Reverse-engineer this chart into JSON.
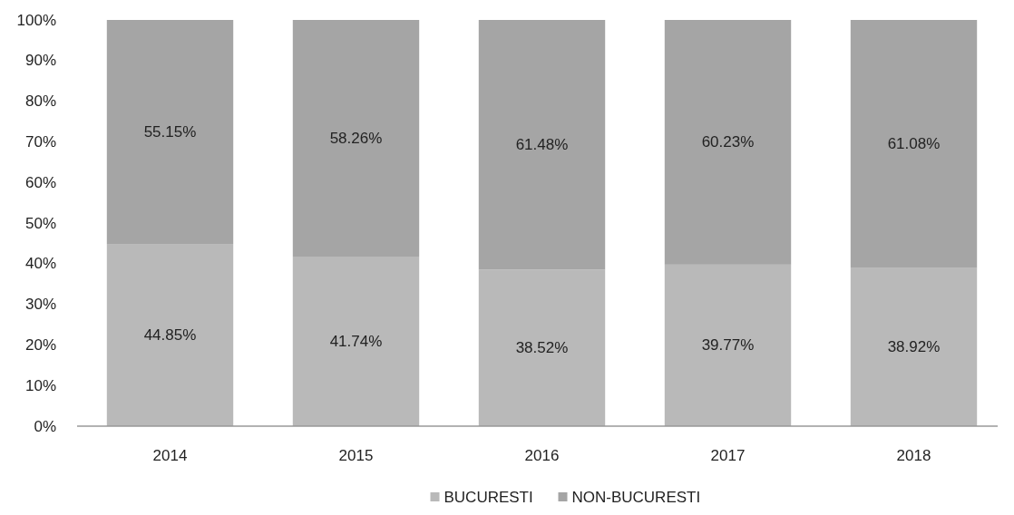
{
  "chart_data": {
    "type": "bar",
    "stacked": true,
    "categories": [
      "2014",
      "2015",
      "2016",
      "2017",
      "2018"
    ],
    "series": [
      {
        "name": "BUCURESTI",
        "color": "#b9b9b9",
        "values": [
          44.85,
          41.74,
          38.52,
          39.77,
          38.92
        ],
        "value_labels": [
          "44.85%",
          "41.74%",
          "38.52%",
          "39.77%",
          "38.92%"
        ]
      },
      {
        "name": "NON-BUCURESTI",
        "color": "#a5a5a5",
        "values": [
          55.15,
          58.26,
          61.48,
          60.23,
          61.08
        ],
        "value_labels": [
          "55.15%",
          "58.26%",
          "61.48%",
          "60.23%",
          "61.08%"
        ]
      }
    ],
    "ylim": [
      0,
      100
    ],
    "yticks": [
      {
        "value": 0,
        "label": "0%"
      },
      {
        "value": 10,
        "label": "10%"
      },
      {
        "value": 20,
        "label": "20%"
      },
      {
        "value": 30,
        "label": "30%"
      },
      {
        "value": 40,
        "label": "40%"
      },
      {
        "value": 50,
        "label": "50%"
      },
      {
        "value": 60,
        "label": "60%"
      },
      {
        "value": 70,
        "label": "70%"
      },
      {
        "value": 80,
        "label": "80%"
      },
      {
        "value": 90,
        "label": "90%"
      },
      {
        "value": 100,
        "label": "100%"
      }
    ],
    "grid": false,
    "legend": "bottom"
  }
}
